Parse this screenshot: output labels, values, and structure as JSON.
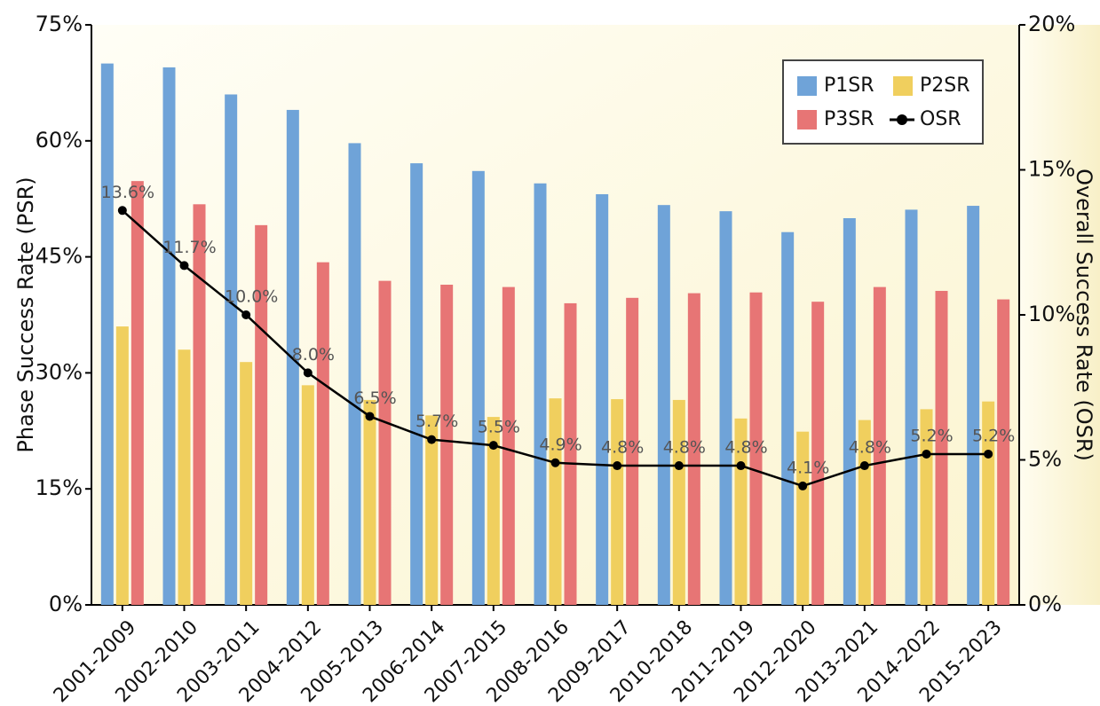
{
  "chart_data": {
    "type": "bar",
    "categories": [
      "2001-2009",
      "2002-2010",
      "2003-2011",
      "2004-2012",
      "2005-2013",
      "2006-2014",
      "2007-2015",
      "2008-2016",
      "2009-2017",
      "2010-2018",
      "2011-2019",
      "2012-2020",
      "2013-2021",
      "2014-2022",
      "2015-2023"
    ],
    "series": [
      {
        "name": "P1SR",
        "color": "#6fa3d8",
        "values": [
          70,
          69.5,
          66,
          64,
          59.7,
          57.1,
          56.1,
          54.5,
          53.1,
          51.7,
          50.9,
          48.2,
          50,
          51.1,
          51.6
        ]
      },
      {
        "name": "P2SR",
        "color": "#f0cf5e",
        "values": [
          36,
          33,
          31.4,
          28.4,
          26.5,
          24.5,
          24.3,
          26.7,
          26.6,
          26.5,
          24.1,
          22.4,
          23.9,
          25.3,
          26.3
        ]
      },
      {
        "name": "P3SR",
        "color": "#e77575",
        "values": [
          54.8,
          51.8,
          49.1,
          44.3,
          41.9,
          41.4,
          41.1,
          39,
          39.7,
          40.3,
          40.4,
          39.2,
          41.1,
          40.6,
          39.5
        ]
      },
      {
        "name": "OSR",
        "type": "line",
        "axis": "y2",
        "color": "#000000",
        "values": [
          13.6,
          11.7,
          10.0,
          8.0,
          6.5,
          5.7,
          5.5,
          4.9,
          4.8,
          4.8,
          4.8,
          4.1,
          4.8,
          5.2,
          5.2
        ],
        "value_labels": [
          "13.6%",
          "11.7%",
          "10.0%",
          "8.0%",
          "6.5%",
          "5.7%",
          "5.5%",
          "4.9%",
          "4.8%",
          "4.8%",
          "4.8%",
          "4.1%",
          "4.8%",
          "5.2%",
          "5.2%"
        ]
      }
    ],
    "ylabel": "Phase Success Rate (PSR)",
    "y2label": "Overall Success Rate (OSR)",
    "ylim": [
      0,
      75
    ],
    "yticks": [
      {
        "value": 0,
        "label": "0%"
      },
      {
        "value": 15,
        "label": "15%"
      },
      {
        "value": 30,
        "label": "30%"
      },
      {
        "value": 45,
        "label": "45%"
      },
      {
        "value": 60,
        "label": "60%"
      },
      {
        "value": 75,
        "label": "75%"
      }
    ],
    "y2lim": [
      0,
      20
    ],
    "y2ticks": [
      {
        "value": 0,
        "label": "0%"
      },
      {
        "value": 5,
        "label": "5%"
      },
      {
        "value": 10,
        "label": "10%"
      },
      {
        "value": 15,
        "label": "15%"
      },
      {
        "value": 20,
        "label": "20%"
      }
    ],
    "legend": "upper right"
  }
}
